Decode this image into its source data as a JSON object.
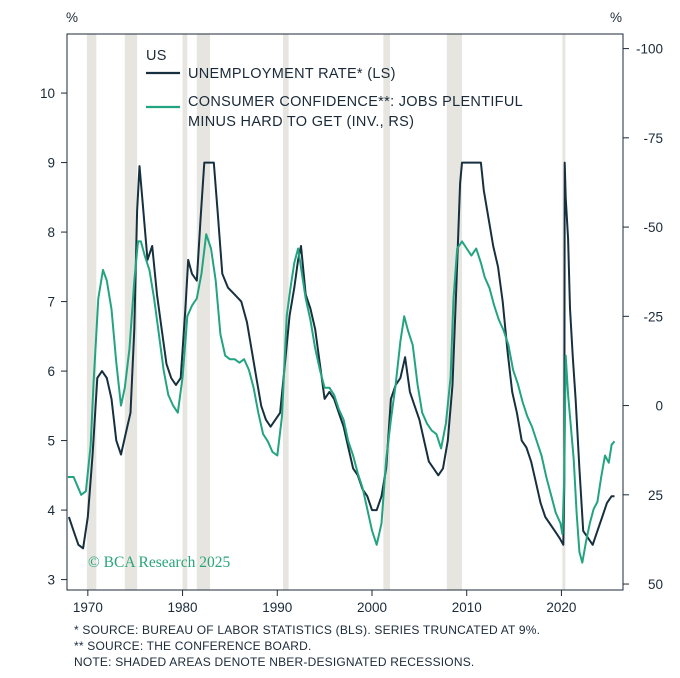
{
  "chart_data": {
    "type": "line",
    "title": "US",
    "left_axis": {
      "unit_label": "%",
      "ylim": [
        2.85,
        10.85
      ],
      "ticks": [
        3,
        4,
        5,
        6,
        7,
        8,
        9,
        10
      ]
    },
    "right_axis": {
      "unit_label": "%",
      "ylim": [
        51.67,
        -104.09
      ],
      "ticks": [
        "-100",
        "-75",
        "-50",
        "-25",
        "0",
        "25",
        "50"
      ],
      "inverted": true
    },
    "x_axis": {
      "xlim": [
        1967.8,
        2026.5
      ],
      "ticks": [
        1970,
        1980,
        1990,
        2000,
        2010,
        2020
      ]
    },
    "grid": false,
    "legend_placement": "top-left",
    "recessions": [
      [
        1969.9,
        1970.9
      ],
      [
        1973.9,
        1975.2
      ],
      [
        1980.0,
        1980.5
      ],
      [
        1981.5,
        1982.9
      ],
      [
        1990.6,
        1991.2
      ],
      [
        2001.2,
        2001.9
      ],
      [
        2007.9,
        2009.5
      ],
      [
        2020.1,
        2020.4
      ]
    ],
    "series": [
      {
        "name": "UNEMPLOYMENT RATE* (LS)",
        "axis": "left",
        "color": "#17303f",
        "points": [
          [
            1968.0,
            3.9
          ],
          [
            1968.5,
            3.7
          ],
          [
            1969.0,
            3.5
          ],
          [
            1969.5,
            3.45
          ],
          [
            1970.0,
            3.9
          ],
          [
            1970.5,
            4.8
          ],
          [
            1971.0,
            5.9
          ],
          [
            1971.5,
            6.0
          ],
          [
            1972.0,
            5.9
          ],
          [
            1972.5,
            5.6
          ],
          [
            1973.0,
            5.0
          ],
          [
            1973.5,
            4.8
          ],
          [
            1974.0,
            5.1
          ],
          [
            1974.5,
            5.4
          ],
          [
            1974.9,
            6.6
          ],
          [
            1975.2,
            8.3
          ],
          [
            1975.45,
            8.95
          ],
          [
            1975.8,
            8.4
          ],
          [
            1976.3,
            7.6
          ],
          [
            1976.8,
            7.8
          ],
          [
            1977.3,
            7.1
          ],
          [
            1977.8,
            6.6
          ],
          [
            1978.3,
            6.1
          ],
          [
            1978.8,
            5.9
          ],
          [
            1979.3,
            5.8
          ],
          [
            1979.8,
            5.9
          ],
          [
            1980.3,
            6.9
          ],
          [
            1980.6,
            7.6
          ],
          [
            1981.0,
            7.4
          ],
          [
            1981.5,
            7.3
          ],
          [
            1981.9,
            8.2
          ],
          [
            1982.3,
            9.0
          ],
          [
            1982.8,
            9.0
          ],
          [
            1983.3,
            9.0
          ],
          [
            1983.7,
            8.3
          ],
          [
            1984.2,
            7.4
          ],
          [
            1984.8,
            7.2
          ],
          [
            1985.5,
            7.1
          ],
          [
            1986.2,
            7.0
          ],
          [
            1986.8,
            6.7
          ],
          [
            1987.3,
            6.3
          ],
          [
            1987.8,
            5.9
          ],
          [
            1988.3,
            5.5
          ],
          [
            1988.8,
            5.3
          ],
          [
            1989.3,
            5.2
          ],
          [
            1989.8,
            5.3
          ],
          [
            1990.3,
            5.4
          ],
          [
            1990.8,
            6.1
          ],
          [
            1991.3,
            6.8
          ],
          [
            1991.8,
            7.2
          ],
          [
            1992.2,
            7.6
          ],
          [
            1992.5,
            7.8
          ],
          [
            1993.0,
            7.1
          ],
          [
            1993.5,
            6.9
          ],
          [
            1994.0,
            6.6
          ],
          [
            1994.5,
            6.1
          ],
          [
            1995.0,
            5.6
          ],
          [
            1995.5,
            5.7
          ],
          [
            1996.0,
            5.6
          ],
          [
            1996.5,
            5.4
          ],
          [
            1997.0,
            5.2
          ],
          [
            1997.5,
            4.9
          ],
          [
            1998.0,
            4.6
          ],
          [
            1998.5,
            4.5
          ],
          [
            1999.0,
            4.3
          ],
          [
            1999.5,
            4.2
          ],
          [
            2000.0,
            4.0
          ],
          [
            2000.5,
            4.0
          ],
          [
            2001.0,
            4.2
          ],
          [
            2001.5,
            4.6
          ],
          [
            2002.0,
            5.6
          ],
          [
            2002.5,
            5.8
          ],
          [
            2003.0,
            5.9
          ],
          [
            2003.5,
            6.2
          ],
          [
            2004.0,
            5.7
          ],
          [
            2004.5,
            5.5
          ],
          [
            2005.0,
            5.3
          ],
          [
            2005.5,
            5.0
          ],
          [
            2006.0,
            4.7
          ],
          [
            2006.5,
            4.6
          ],
          [
            2007.0,
            4.5
          ],
          [
            2007.5,
            4.6
          ],
          [
            2008.0,
            5.0
          ],
          [
            2008.5,
            5.8
          ],
          [
            2008.9,
            7.2
          ],
          [
            2009.3,
            8.7
          ],
          [
            2009.5,
            9.0
          ],
          [
            2010.0,
            9.0
          ],
          [
            2010.5,
            9.0
          ],
          [
            2011.0,
            9.0
          ],
          [
            2011.5,
            9.0
          ],
          [
            2011.8,
            8.6
          ],
          [
            2012.3,
            8.2
          ],
          [
            2012.8,
            7.8
          ],
          [
            2013.3,
            7.5
          ],
          [
            2013.8,
            7.0
          ],
          [
            2014.3,
            6.3
          ],
          [
            2014.8,
            5.7
          ],
          [
            2015.3,
            5.4
          ],
          [
            2015.8,
            5.0
          ],
          [
            2016.3,
            4.9
          ],
          [
            2016.8,
            4.7
          ],
          [
            2017.3,
            4.4
          ],
          [
            2017.8,
            4.1
          ],
          [
            2018.3,
            3.9
          ],
          [
            2018.8,
            3.8
          ],
          [
            2019.3,
            3.7
          ],
          [
            2019.8,
            3.6
          ],
          [
            2020.2,
            3.5
          ],
          [
            2020.3,
            4.4
          ],
          [
            2020.35,
            9.0
          ],
          [
            2020.45,
            8.5
          ],
          [
            2020.7,
            7.9
          ],
          [
            2020.9,
            6.9
          ],
          [
            2021.2,
            6.2
          ],
          [
            2021.5,
            5.6
          ],
          [
            2021.9,
            4.6
          ],
          [
            2022.3,
            3.7
          ],
          [
            2022.8,
            3.6
          ],
          [
            2023.3,
            3.5
          ],
          [
            2023.8,
            3.7
          ],
          [
            2024.3,
            3.9
          ],
          [
            2024.8,
            4.1
          ],
          [
            2025.3,
            4.2
          ],
          [
            2025.6,
            4.2
          ]
        ]
      },
      {
        "name": "CONSUMER CONFIDENCE**: JOBS PLENTIFUL MINUS HARD TO GET (INV., RS)",
        "axis": "right",
        "color": "#23a480",
        "points": [
          [
            1967.9,
            20
          ],
          [
            1968.5,
            20
          ],
          [
            1969.3,
            25
          ],
          [
            1969.8,
            24
          ],
          [
            1970.3,
            11
          ],
          [
            1970.6,
            -6
          ],
          [
            1971.1,
            -30
          ],
          [
            1971.6,
            -38
          ],
          [
            1972.0,
            -35
          ],
          [
            1972.5,
            -27
          ],
          [
            1973.0,
            -12
          ],
          [
            1973.5,
            0
          ],
          [
            1973.9,
            -5
          ],
          [
            1974.4,
            -16
          ],
          [
            1974.9,
            -35
          ],
          [
            1975.3,
            -46
          ],
          [
            1975.6,
            -46
          ],
          [
            1976.0,
            -42
          ],
          [
            1976.5,
            -38
          ],
          [
            1977.0,
            -30
          ],
          [
            1977.5,
            -20
          ],
          [
            1978.0,
            -10
          ],
          [
            1978.5,
            -3
          ],
          [
            1979.0,
            0
          ],
          [
            1979.5,
            2
          ],
          [
            1980.0,
            -8
          ],
          [
            1980.5,
            -25
          ],
          [
            1981.0,
            -28
          ],
          [
            1981.5,
            -30
          ],
          [
            1982.0,
            -37
          ],
          [
            1982.5,
            -48
          ],
          [
            1983.0,
            -44
          ],
          [
            1983.5,
            -35
          ],
          [
            1984.0,
            -20
          ],
          [
            1984.5,
            -14
          ],
          [
            1985.0,
            -13
          ],
          [
            1985.5,
            -13
          ],
          [
            1986.0,
            -12
          ],
          [
            1986.5,
            -13
          ],
          [
            1987.0,
            -10
          ],
          [
            1987.5,
            -5
          ],
          [
            1988.0,
            2
          ],
          [
            1988.5,
            8
          ],
          [
            1989.0,
            10
          ],
          [
            1989.5,
            13
          ],
          [
            1990.0,
            14
          ],
          [
            1990.5,
            3
          ],
          [
            1991.0,
            -25
          ],
          [
            1991.4,
            -33
          ],
          [
            1991.8,
            -40
          ],
          [
            1992.2,
            -44
          ],
          [
            1992.6,
            -37
          ],
          [
            1993.0,
            -30
          ],
          [
            1993.5,
            -24
          ],
          [
            1994.0,
            -16
          ],
          [
            1994.5,
            -10
          ],
          [
            1995.0,
            -5
          ],
          [
            1995.5,
            -5
          ],
          [
            1996.0,
            -3
          ],
          [
            1996.5,
            1
          ],
          [
            1997.0,
            4
          ],
          [
            1997.5,
            10
          ],
          [
            1998.0,
            14
          ],
          [
            1998.5,
            19
          ],
          [
            1999.0,
            23
          ],
          [
            1999.5,
            29
          ],
          [
            2000.0,
            35
          ],
          [
            2000.5,
            39
          ],
          [
            2001.0,
            33
          ],
          [
            2001.5,
            15
          ],
          [
            2002.0,
            4
          ],
          [
            2002.5,
            -6
          ],
          [
            2003.0,
            -18
          ],
          [
            2003.4,
            -25
          ],
          [
            2003.8,
            -21
          ],
          [
            2004.3,
            -17
          ],
          [
            2004.8,
            -6
          ],
          [
            2005.3,
            2
          ],
          [
            2005.8,
            5
          ],
          [
            2006.3,
            7
          ],
          [
            2006.8,
            8
          ],
          [
            2007.3,
            12
          ],
          [
            2007.8,
            5
          ],
          [
            2008.3,
            -8
          ],
          [
            2008.6,
            -30
          ],
          [
            2009.0,
            -44
          ],
          [
            2009.5,
            -46
          ],
          [
            2010.0,
            -44
          ],
          [
            2010.5,
            -42
          ],
          [
            2011.0,
            -44
          ],
          [
            2011.5,
            -40
          ],
          [
            2011.9,
            -36
          ],
          [
            2012.4,
            -33
          ],
          [
            2012.9,
            -28
          ],
          [
            2013.4,
            -24
          ],
          [
            2013.9,
            -21
          ],
          [
            2014.4,
            -17
          ],
          [
            2014.9,
            -10
          ],
          [
            2015.4,
            -6
          ],
          [
            2015.9,
            -1
          ],
          [
            2016.4,
            3
          ],
          [
            2016.9,
            6
          ],
          [
            2017.4,
            10
          ],
          [
            2017.9,
            14
          ],
          [
            2018.4,
            20
          ],
          [
            2018.9,
            25
          ],
          [
            2019.4,
            30
          ],
          [
            2019.9,
            33
          ],
          [
            2020.1,
            36
          ],
          [
            2020.3,
            20
          ],
          [
            2020.45,
            -14
          ],
          [
            2020.7,
            -3
          ],
          [
            2021.0,
            6
          ],
          [
            2021.3,
            15
          ],
          [
            2021.6,
            30
          ],
          [
            2021.9,
            41
          ],
          [
            2022.2,
            44
          ],
          [
            2022.6,
            38
          ],
          [
            2023.0,
            33
          ],
          [
            2023.4,
            29
          ],
          [
            2023.8,
            27
          ],
          [
            2024.2,
            20
          ],
          [
            2024.6,
            14
          ],
          [
            2025.0,
            16
          ],
          [
            2025.3,
            11
          ],
          [
            2025.6,
            10
          ]
        ]
      }
    ],
    "legend_title": "US",
    "legend": [
      "UNEMPLOYMENT RATE* (LS)",
      "CONSUMER CONFIDENCE**: JOBS PLENTIFUL",
      "MINUS HARD TO GET (INV., RS)"
    ]
  },
  "watermark": "© BCA Research 2025",
  "notes": [
    "*  SOURCE: BUREAU OF LABOR STATISTICS (BLS). SERIES TRUNCATED AT 9%.",
    "** SOURCE: THE CONFERENCE BOARD.",
    "NOTE: SHADED AREAS DENOTE NBER-DESIGNATED RECESSIONS."
  ],
  "colors": {
    "recession": "#e6e5e0",
    "axis": "#1b2a38"
  }
}
